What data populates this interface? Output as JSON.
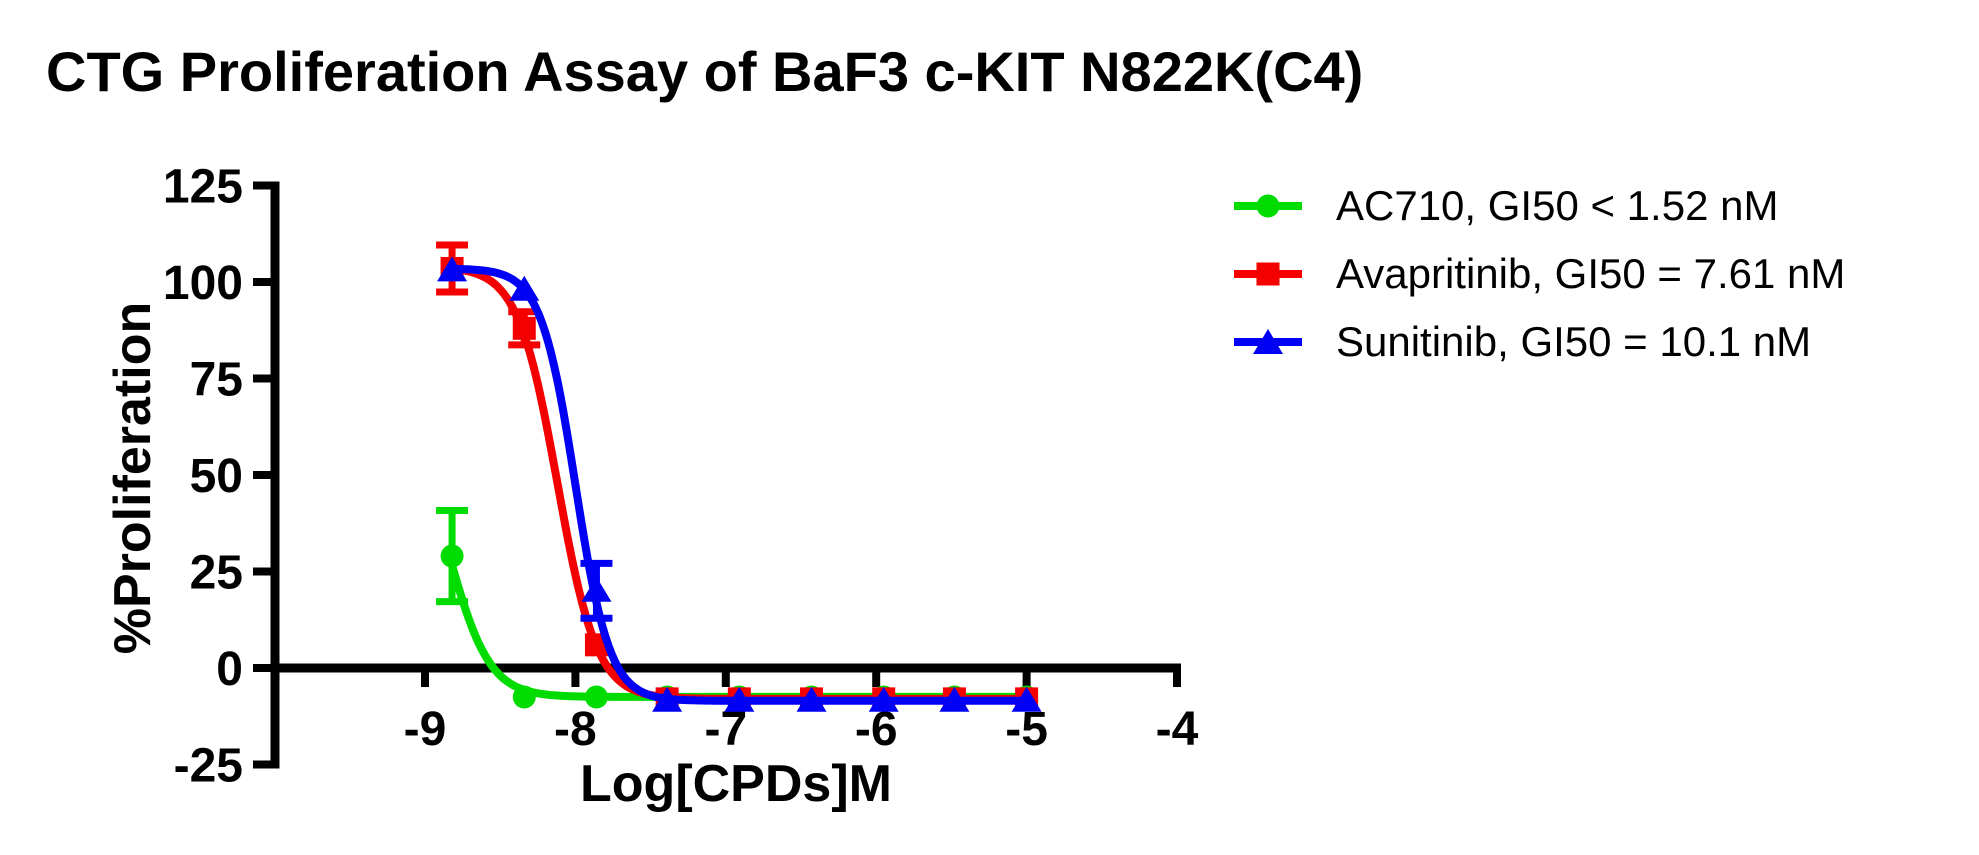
{
  "chart_data": {
    "type": "line",
    "title": "CTG Proliferation Assay of BaF3 c-KIT N822K(C4)",
    "xlabel": "Log[CPDs]M",
    "ylabel": "%Proliferation",
    "xlim": [
      -10,
      -4
    ],
    "ylim": [
      -25,
      125
    ],
    "x_ticks": [
      -9,
      -8,
      -7,
      -6,
      -5,
      -4
    ],
    "y_ticks": [
      125,
      100,
      75,
      50,
      25,
      0,
      -25
    ],
    "grid": false,
    "legend_position": "right",
    "axis_color": "#000000",
    "x": [
      -8.82,
      -8.34,
      -7.86,
      -7.39,
      -6.91,
      -6.43,
      -5.95,
      -5.48,
      -5.0
    ],
    "series": [
      {
        "name": "AC710",
        "legend_label": "AC710, GI50 < 1.52 nM",
        "gi50": "< 1.52 nM",
        "color": "#00DC00",
        "marker": "circle",
        "values": [
          29,
          -7.5,
          -7.5,
          -7.5,
          -7.5,
          -7.5,
          -7.5,
          -7.5,
          -7.5
        ],
        "errors": [
          11.8,
          0,
          0,
          0,
          0,
          0,
          0,
          0,
          0
        ],
        "fit": {
          "top": 66,
          "bottom": -7.5,
          "logIC50": -8.84,
          "hill": 3.2
        }
      },
      {
        "name": "Avapritinib",
        "legend_label": "Avapritinib, GI50 = 7.61 nM",
        "gi50": "= 7.61 nM",
        "color": "#F50000",
        "marker": "square",
        "values": [
          103.5,
          88,
          6,
          -8,
          -8,
          -8,
          -8,
          -8,
          -8
        ],
        "errors": [
          6.1,
          4.3,
          0,
          0,
          0,
          0,
          0,
          0,
          0
        ],
        "fit": {
          "top": 104,
          "bottom": -8,
          "logIC50": -8.12,
          "hill": 3.3
        }
      },
      {
        "name": "Sunitinib",
        "legend_label": "Sunitinib, GI50 = 10.1 nM",
        "gi50": "= 10.1 nM",
        "color": "#0000F5",
        "marker": "triangle",
        "values": [
          103,
          98,
          20,
          -8.5,
          -8.5,
          -8.5,
          -8.5,
          -8.5,
          -8.5
        ],
        "errors": [
          0,
          0,
          7.1,
          0,
          0,
          0,
          0,
          0,
          0
        ],
        "fit": {
          "top": 103.5,
          "bottom": -8.5,
          "logIC50": -8.0,
          "hill": 3.8
        }
      }
    ]
  }
}
